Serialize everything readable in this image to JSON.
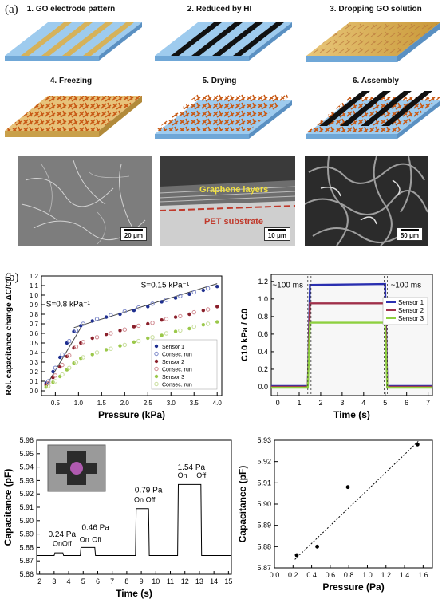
{
  "panels": {
    "a": "(a)",
    "b": "(b)"
  },
  "steps": [
    "1. GO electrode pattern",
    "2. Reduced by HI",
    "3. Dropping GO solution",
    "4. Freezing",
    "5. Drying",
    "6. Assembly"
  ],
  "sem": [
    {
      "scale": "20 μm"
    },
    {
      "scale": "10 μm",
      "label_top": "Graphene layers",
      "label_bottom": "PET substrate"
    },
    {
      "scale": "50 μm"
    }
  ],
  "colors": {
    "blue_base": "#8fc1ea",
    "gold": "#d4a84a",
    "black_stripe": "#111111",
    "foam": "#c85a16"
  },
  "chart_data": [
    {
      "type": "scatter",
      "xlabel": "Pressure (kPa)",
      "ylabel": "Rel. capacitance change ΔC/C0",
      "xlim": [
        0.2,
        4.1
      ],
      "ylim": [
        -0.05,
        1.2
      ],
      "xticks": [
        "0.5",
        "1.0",
        "1.5",
        "2.0",
        "2.5",
        "3.0",
        "3.5",
        "4.0"
      ],
      "yticks": [
        "0.0",
        "0.1",
        "0.2",
        "0.3",
        "0.4",
        "0.5",
        "0.6",
        "0.7",
        "0.8",
        "0.9",
        "1.0",
        "1.1",
        "1.2"
      ],
      "annotations": [
        "S=0.15 kPa⁻¹",
        "S=0.8 kPa⁻¹"
      ],
      "legend_position": "bottom-right",
      "series": [
        {
          "name": "Sensor 1",
          "color": "#1f2f8f",
          "marker": "filled",
          "x": [
            0.3,
            0.45,
            0.6,
            0.75,
            0.9,
            1.05,
            1.3,
            1.6,
            1.9,
            2.2,
            2.5,
            2.8,
            3.1,
            3.4,
            3.7,
            4.0
          ],
          "y": [
            0.08,
            0.2,
            0.35,
            0.5,
            0.62,
            0.68,
            0.73,
            0.77,
            0.8,
            0.84,
            0.88,
            0.93,
            0.97,
            1.01,
            1.05,
            1.09
          ]
        },
        {
          "name": "Consec. run",
          "color": "#7a86c8",
          "marker": "open",
          "x": [
            0.35,
            0.5,
            0.65,
            0.8,
            0.95,
            1.1,
            1.4,
            1.7,
            2.0,
            2.3,
            2.6,
            2.9,
            3.2,
            3.5,
            3.8
          ],
          "y": [
            0.1,
            0.24,
            0.38,
            0.52,
            0.63,
            0.7,
            0.75,
            0.79,
            0.83,
            0.87,
            0.91,
            0.95,
            0.99,
            1.03,
            1.07
          ]
        },
        {
          "name": "Sensor 2",
          "color": "#8a1f2a",
          "marker": "filled",
          "x": [
            0.3,
            0.45,
            0.6,
            0.75,
            0.9,
            1.05,
            1.3,
            1.6,
            1.9,
            2.2,
            2.5,
            2.8,
            3.1,
            3.4,
            3.7,
            4.0
          ],
          "y": [
            0.06,
            0.14,
            0.25,
            0.36,
            0.45,
            0.5,
            0.55,
            0.59,
            0.63,
            0.67,
            0.7,
            0.74,
            0.77,
            0.8,
            0.84,
            0.88
          ]
        },
        {
          "name": "Consec. run",
          "color": "#d08a90",
          "marker": "open",
          "x": [
            0.35,
            0.5,
            0.65,
            0.8,
            0.95,
            1.1,
            1.4,
            1.7,
            2.0,
            2.3,
            2.6,
            2.9,
            3.2,
            3.5,
            3.8
          ],
          "y": [
            0.08,
            0.16,
            0.27,
            0.37,
            0.46,
            0.51,
            0.56,
            0.6,
            0.64,
            0.68,
            0.71,
            0.75,
            0.78,
            0.82,
            0.85
          ]
        },
        {
          "name": "Sensor 3",
          "color": "#9bc84a",
          "marker": "filled",
          "x": [
            0.3,
            0.45,
            0.6,
            0.75,
            0.9,
            1.05,
            1.3,
            1.6,
            1.9,
            2.2,
            2.5,
            2.8,
            3.1,
            3.4,
            3.7,
            4.0
          ],
          "y": [
            0.04,
            0.09,
            0.15,
            0.22,
            0.29,
            0.34,
            0.38,
            0.43,
            0.47,
            0.51,
            0.55,
            0.58,
            0.62,
            0.65,
            0.69,
            0.72
          ]
        },
        {
          "name": "Consec. run",
          "color": "#c7dd9a",
          "marker": "open",
          "x": [
            0.35,
            0.5,
            0.65,
            0.8,
            0.95,
            1.1,
            1.4,
            1.7,
            2.0,
            2.3,
            2.6,
            2.9,
            3.2,
            3.5,
            3.8
          ],
          "y": [
            0.05,
            0.1,
            0.17,
            0.24,
            0.3,
            0.35,
            0.4,
            0.44,
            0.48,
            0.52,
            0.56,
            0.6,
            0.63,
            0.67,
            0.7
          ]
        }
      ]
    },
    {
      "type": "line",
      "xlabel": "Time (s)",
      "ylabel": "C10 kPa / C0",
      "xlim": [
        -0.3,
        7.2
      ],
      "ylim": [
        -0.1,
        1.28
      ],
      "xticks": [
        "0",
        "1",
        "2",
        "3",
        "4",
        "5",
        "6",
        "7"
      ],
      "yticks": [
        "0.0",
        "0.2",
        "0.4",
        "0.6",
        "0.8",
        "1.0",
        "1.2"
      ],
      "annotations": [
        "~100 ms",
        "~100 ms"
      ],
      "legend_position": "top-right",
      "series": [
        {
          "name": "Sensor 1",
          "color": "#2a2fb0",
          "x": [
            -0.3,
            1.4,
            1.5,
            5.0,
            5.1,
            7.2
          ],
          "y": [
            0.01,
            0.01,
            1.16,
            1.17,
            0.01,
            0.01
          ]
        },
        {
          "name": "Sensor 2",
          "color": "#a0304a",
          "x": [
            -0.3,
            1.4,
            1.5,
            5.0,
            5.1,
            7.2
          ],
          "y": [
            0.0,
            0.0,
            0.95,
            0.95,
            0.0,
            0.0
          ]
        },
        {
          "name": "Sensor 3",
          "color": "#8ed040",
          "x": [
            -0.3,
            1.4,
            1.5,
            5.0,
            5.1,
            7.2
          ],
          "y": [
            -0.01,
            -0.01,
            0.73,
            0.73,
            -0.01,
            -0.01
          ]
        }
      ]
    },
    {
      "type": "line",
      "xlabel": "Time (s)",
      "ylabel": "Capacitance (pF)",
      "xlim": [
        1.8,
        15.2
      ],
      "ylim": [
        5.86,
        5.96
      ],
      "xticks": [
        "2",
        "3",
        "4",
        "5",
        "6",
        "7",
        "8",
        "9",
        "10",
        "11",
        "12",
        "13",
        "14",
        "15"
      ],
      "yticks": [
        "5.86",
        "5.87",
        "5.88",
        "5.89",
        "5.90",
        "5.91",
        "5.92",
        "5.93",
        "5.94",
        "5.95",
        "5.96"
      ],
      "annotations": [
        "0.24 Pa",
        "0.46 Pa",
        "0.79 Pa",
        "1.54 Pa",
        "On",
        "Off",
        "On",
        "Off",
        "On",
        "Off",
        "On",
        "Off"
      ],
      "series": [
        {
          "name": "",
          "color": "#000000",
          "x": [
            1.8,
            3.0,
            3.05,
            3.6,
            3.65,
            4.8,
            4.85,
            5.8,
            5.85,
            6.8,
            6.85,
            8.6,
            8.65,
            9.5,
            9.55,
            11.5,
            11.55,
            13.1,
            13.15,
            15.2
          ],
          "y": [
            5.874,
            5.874,
            5.876,
            5.876,
            5.874,
            5.874,
            5.88,
            5.88,
            5.874,
            5.874,
            5.874,
            5.874,
            5.909,
            5.909,
            5.874,
            5.874,
            5.927,
            5.927,
            5.874,
            5.874
          ]
        }
      ]
    },
    {
      "type": "scatter",
      "xlabel": "Pressure (Pa)",
      "ylabel": "Capacitance (pF)",
      "xlim": [
        0.0,
        1.7
      ],
      "ylim": [
        5.87,
        5.93
      ],
      "xticks": [
        "0.0",
        "0.2",
        "0.4",
        "0.6",
        "0.8",
        "1.0",
        "1.2",
        "1.4",
        "1.6"
      ],
      "yticks": [
        "5.87",
        "5.88",
        "5.89",
        "5.90",
        "5.91",
        "5.92",
        "5.93"
      ],
      "series": [
        {
          "name": "",
          "color": "#000000",
          "x": [
            0.24,
            0.46,
            0.79,
            1.54
          ],
          "y": [
            5.876,
            5.88,
            5.908,
            5.928
          ]
        }
      ]
    }
  ]
}
